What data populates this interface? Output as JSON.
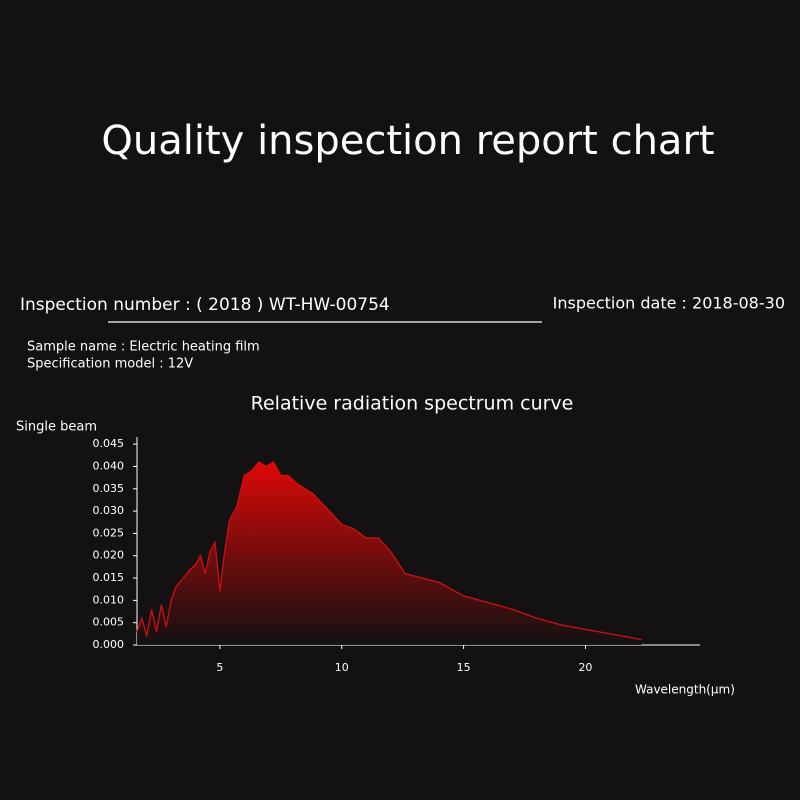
{
  "header": {
    "title": "Quality inspection report chart",
    "inspection_number": "Inspection  number :  ( 2018 ) WT-HW-00754",
    "inspection_date": "Inspection date : 2018-08-30",
    "sample_name": "Sample name : Electric heating film",
    "specification_model": "Specification model : 12V"
  },
  "chart_data": {
    "type": "area",
    "title": "Relative radiation spectrum curve",
    "ylabel": "Single beam",
    "xlabel": "Wavelength(μm)",
    "color": "#d01010",
    "x": [
      1.6,
      1.8,
      2.0,
      2.2,
      2.4,
      2.6,
      2.8,
      3.0,
      3.2,
      3.5,
      3.8,
      4.0,
      4.2,
      4.4,
      4.6,
      4.8,
      5.0,
      5.2,
      5.4,
      5.7,
      6.0,
      6.3,
      6.6,
      6.9,
      7.2,
      7.5,
      7.8,
      8.2,
      8.8,
      9.5,
      10.0,
      10.5,
      11.0,
      11.5,
      12.0,
      12.6,
      13.3,
      14.0,
      15.0,
      16.0,
      17.0,
      18.0,
      19.0,
      20.0,
      21.0,
      22.3
    ],
    "values": [
      0.003,
      0.006,
      0.002,
      0.008,
      0.003,
      0.009,
      0.004,
      0.01,
      0.013,
      0.015,
      0.017,
      0.018,
      0.02,
      0.016,
      0.021,
      0.023,
      0.012,
      0.021,
      0.028,
      0.031,
      0.038,
      0.039,
      0.041,
      0.04,
      0.041,
      0.038,
      0.038,
      0.036,
      0.034,
      0.03,
      0.027,
      0.026,
      0.024,
      0.024,
      0.021,
      0.016,
      0.015,
      0.014,
      0.011,
      0.0095,
      0.008,
      0.006,
      0.0045,
      0.0035,
      0.0025,
      0.0012
    ],
    "xlim": [
      1.6,
      24.7
    ],
    "xticks": [
      5,
      10,
      15,
      20
    ],
    "ylim": [
      0,
      0.0466
    ],
    "yticks": [
      {
        "value": 0,
        "label": "0.000"
      },
      0.005,
      {
        "value": 0.01,
        "label": "0.010"
      },
      0.015,
      {
        "value": 0.02,
        "label": "0.020"
      },
      0.025,
      {
        "value": 0.03,
        "label": "0.030"
      },
      0.035,
      {
        "value": 0.04,
        "label": "0.040"
      },
      0.045
    ]
  }
}
